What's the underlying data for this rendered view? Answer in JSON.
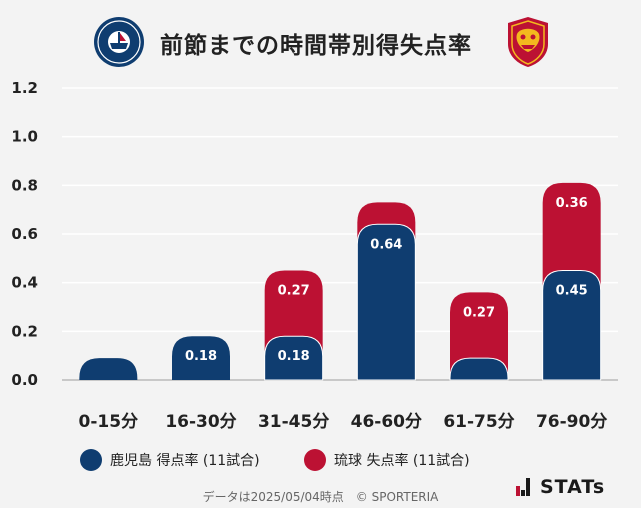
{
  "header": {
    "title": "前節までの時間帯別得失点率",
    "left_logo_text_top": "KAGOSHIMA",
    "left_logo_text_bottom": "UNITED F.C."
  },
  "colors": {
    "kagoshima": "#0f3d70",
    "ryukyu": "#bc1133",
    "background": "#f3f3f3"
  },
  "chart_data": {
    "type": "bar",
    "stacked": true,
    "categories": [
      "0-15分",
      "16-30分",
      "31-45分",
      "46-60分",
      "61-75分",
      "76-90分"
    ],
    "series": [
      {
        "name": "鹿児島 得点率 (11試合)",
        "values": [
          0.09,
          0.18,
          0.18,
          0.64,
          0.09,
          0.45
        ],
        "labels": [
          "",
          "0.18",
          "0.18",
          "0.64",
          "",
          "0.45"
        ]
      },
      {
        "name": "琉球 失点率 (11試合)",
        "values": [
          0,
          0,
          0.27,
          0.09,
          0.27,
          0.36
        ],
        "labels": [
          "",
          "",
          "0.27",
          "",
          "0.27",
          "0.36"
        ]
      }
    ],
    "ylim": [
      0,
      1.2
    ],
    "yticks": [
      "0.0",
      "0.2",
      "0.4",
      "0.6",
      "0.8",
      "1.0",
      "1.2"
    ],
    "grid": true,
    "legend_position": "bottom"
  },
  "legend": {
    "items": [
      "鹿児島 得点率 (11試合)",
      "琉球 失点率 (11試合)"
    ]
  },
  "footer": {
    "note": "データは2025/05/04時点　© SPORTERIA"
  },
  "brand": {
    "name": "STATs"
  }
}
